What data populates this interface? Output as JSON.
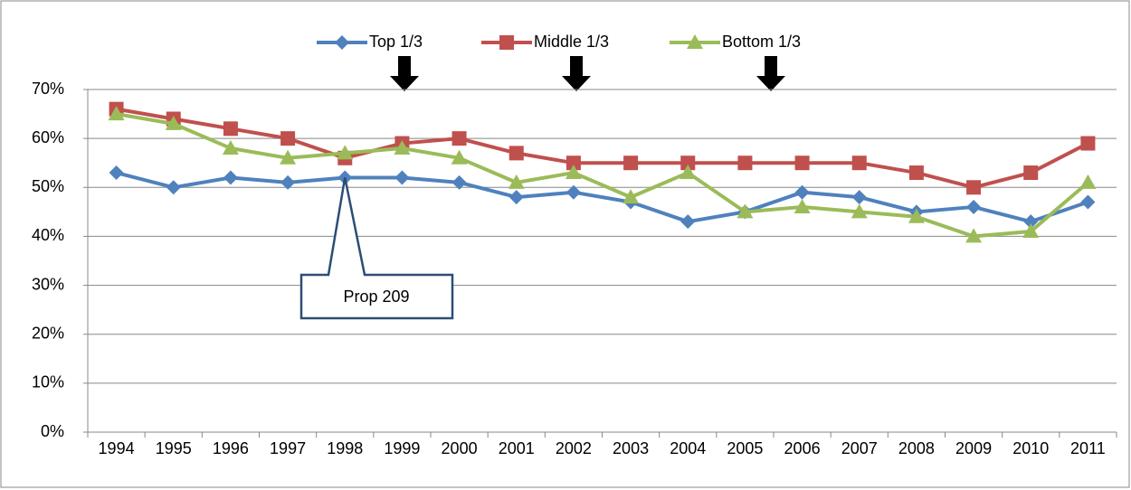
{
  "chart_data": {
    "type": "line",
    "categories": [
      "1994",
      "1995",
      "1996",
      "1997",
      "1998",
      "1999",
      "2000",
      "2001",
      "2002",
      "2003",
      "2004",
      "2005",
      "2006",
      "2007",
      "2008",
      "2009",
      "2010",
      "2011"
    ],
    "series": [
      {
        "name": "Top 1/3",
        "color": "#4f81bd",
        "marker": "diamond",
        "values": [
          53,
          50,
          52,
          51,
          52,
          52,
          51,
          48,
          49,
          47,
          43,
          45,
          49,
          48,
          45,
          46,
          43,
          47
        ]
      },
      {
        "name": "Middle 1/3",
        "color": "#c0504d",
        "marker": "square",
        "values": [
          66,
          64,
          62,
          60,
          56,
          59,
          60,
          57,
          55,
          55,
          55,
          55,
          55,
          55,
          53,
          50,
          53,
          59
        ]
      },
      {
        "name": "Bottom 1/3",
        "color": "#9bbb59",
        "marker": "triangle",
        "values": [
          65,
          63,
          58,
          56,
          57,
          58,
          56,
          51,
          53,
          48,
          53,
          45,
          46,
          45,
          44,
          40,
          41,
          51
        ]
      }
    ],
    "ylim": [
      0,
      70
    ],
    "yticks": [
      {
        "value": 0,
        "label": "0%"
      },
      {
        "value": 10,
        "label": "10%"
      },
      {
        "value": 20,
        "label": "20%"
      },
      {
        "value": 30,
        "label": "30%"
      },
      {
        "value": 40,
        "label": "40%"
      },
      {
        "value": 50,
        "label": "50%"
      },
      {
        "value": 60,
        "label": "60%"
      },
      {
        "value": 70,
        "label": "70%"
      }
    ],
    "grid": true,
    "legend": "top",
    "annotation": "Prop 209"
  }
}
